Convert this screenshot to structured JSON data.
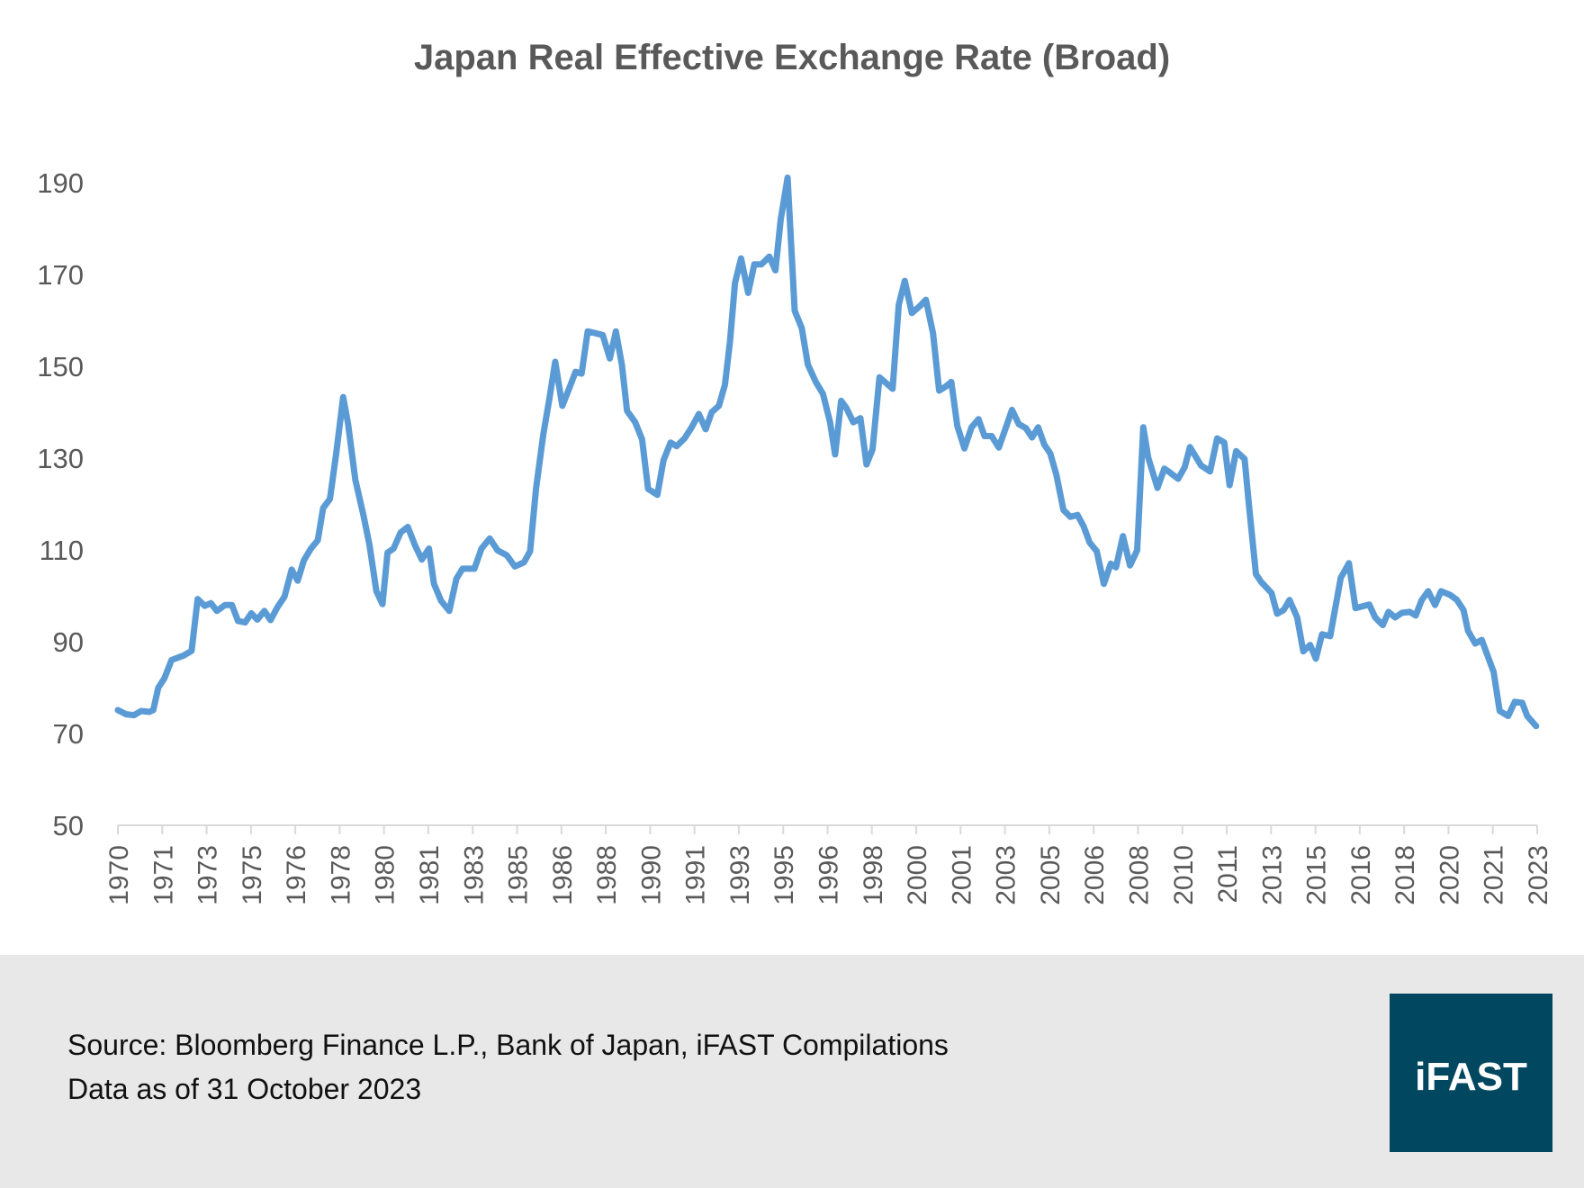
{
  "chart_data": {
    "type": "line",
    "title": "Japan Real Effective Exchange Rate (Broad)",
    "xlabel": "",
    "ylabel": "",
    "ylim": [
      50,
      190
    ],
    "yticks": [
      50,
      70,
      90,
      110,
      130,
      150,
      170,
      190
    ],
    "xlim": [
      1970.0,
      2023.75
    ],
    "xtick_labels": [
      "1970",
      "1971",
      "1973",
      "1975",
      "1976",
      "1978",
      "1980",
      "1981",
      "1983",
      "1985",
      "1986",
      "1988",
      "1990",
      "1991",
      "1993",
      "1995",
      "1996",
      "1998",
      "2000",
      "2001",
      "2003",
      "2005",
      "2006",
      "2008",
      "2010",
      "2011",
      "2013",
      "2015",
      "2016",
      "2018",
      "2020",
      "2021",
      "2023"
    ],
    "grid": false,
    "legend": "none",
    "series": [
      {
        "color": "#5b9bd5",
        "x": [
          1970.0,
          1970.31,
          1970.61,
          1970.88,
          1971.19,
          1971.34,
          1971.53,
          1971.76,
          1972.03,
          1972.49,
          1972.79,
          1973.02,
          1973.29,
          1973.52,
          1973.75,
          1974.06,
          1974.32,
          1974.55,
          1974.82,
          1975.05,
          1975.28,
          1975.55,
          1975.78,
          1976.04,
          1976.31,
          1976.58,
          1976.81,
          1977.04,
          1977.31,
          1977.57,
          1977.77,
          1978.03,
          1978.26,
          1978.53,
          1978.72,
          1978.99,
          1979.3,
          1979.53,
          1979.79,
          1980.02,
          1980.21,
          1980.44,
          1980.71,
          1980.98,
          1981.25,
          1981.51,
          1981.78,
          1981.97,
          1982.24,
          1982.55,
          1982.82,
          1983.05,
          1983.5,
          1983.77,
          1984.08,
          1984.38,
          1984.73,
          1985.03,
          1985.38,
          1985.61,
          1985.84,
          1986.11,
          1986.34,
          1986.56,
          1986.83,
          1987.1,
          1987.33,
          1987.56,
          1987.79,
          1988.1,
          1988.36,
          1988.63,
          1988.86,
          1989.09,
          1989.28,
          1989.59,
          1989.85,
          1990.08,
          1990.43,
          1990.66,
          1990.93,
          1991.16,
          1991.46,
          1991.73,
          1992.0,
          1992.26,
          1992.49,
          1992.76,
          1992.99,
          1993.18,
          1993.37,
          1993.6,
          1993.87,
          1994.1,
          1994.37,
          1994.67,
          1994.9,
          1995.1,
          1995.36,
          1995.63,
          1995.9,
          1996.13,
          1996.43,
          1996.7,
          1996.97,
          1997.16,
          1997.39,
          1997.58,
          1997.85,
          1998.12,
          1998.35,
          1998.58,
          1998.84,
          1999.04,
          1999.34,
          1999.57,
          1999.8,
          2000.07,
          2000.37,
          2000.6,
          2000.87,
          2001.1,
          2001.33,
          2001.56,
          2001.79,
          2002.06,
          2002.33,
          2002.59,
          2002.82,
          2003.09,
          2003.36,
          2003.63,
          2003.86,
          2004.12,
          2004.39,
          2004.62,
          2004.85,
          2005.08,
          2005.31,
          2005.54,
          2005.81,
          2006.07,
          2006.34,
          2006.57,
          2006.8,
          2007.07,
          2007.34,
          2007.6,
          2007.8,
          2008.06,
          2008.33,
          2008.6,
          2008.83,
          2009.02,
          2009.37,
          2009.63,
          2009.83,
          2010.15,
          2010.4,
          2010.6,
          2011.02,
          2011.36,
          2011.63,
          2011.9,
          2012.1,
          2012.35,
          2012.67,
          2012.84,
          2013.1,
          2013.3,
          2013.69,
          2013.9,
          2014.15,
          2014.37,
          2014.66,
          2014.89,
          2015.15,
          2015.37,
          2015.6,
          2015.91,
          2016.31,
          2016.62,
          2016.87,
          2017.39,
          2017.61,
          2017.9,
          2018.12,
          2018.37,
          2018.63,
          2018.92,
          2019.15,
          2019.37,
          2019.62,
          2019.88,
          2020.11,
          2020.45,
          2020.71,
          2020.96,
          2021.13,
          2021.4,
          2021.65,
          2022.1,
          2022.33,
          2022.65,
          2022.9,
          2023.18,
          2023.37,
          2023.71
        ],
        "y": [
          75.1,
          74.2,
          74.0,
          74.9,
          74.7,
          75.1,
          80.0,
          82.0,
          86.0,
          87.0,
          88.0,
          99.3,
          97.8,
          98.4,
          96.7,
          98.0,
          98.0,
          94.5,
          94.2,
          96.2,
          94.8,
          96.7,
          94.7,
          97.5,
          99.8,
          105.7,
          103.3,
          107.7,
          110.3,
          112.1,
          119.1,
          121.1,
          130.6,
          143.3,
          137.4,
          125.3,
          117.5,
          111.0,
          101.0,
          98.2,
          109.4,
          110.3,
          113.8,
          115.0,
          111.0,
          107.9,
          110.3,
          102.6,
          98.9,
          96.7,
          103.7,
          105.9,
          105.9,
          110.3,
          112.5,
          109.9,
          108.8,
          106.4,
          107.3,
          109.7,
          123.5,
          135.2,
          142.9,
          151.0,
          141.4,
          145.3,
          148.8,
          148.4,
          157.6,
          157.2,
          156.8,
          151.7,
          157.6,
          150.2,
          140.3,
          137.8,
          134.1,
          123.3,
          122.0,
          129.5,
          133.4,
          132.6,
          134.3,
          136.7,
          139.6,
          136.3,
          140.0,
          141.4,
          146.0,
          155.4,
          168.2,
          173.5,
          166.0,
          172.2,
          172.2,
          173.9,
          170.9,
          181.9,
          191.1,
          162.1,
          158.3,
          150.4,
          146.6,
          144.0,
          137.8,
          130.8,
          142.5,
          141.0,
          137.8,
          138.7,
          128.6,
          131.9,
          147.6,
          146.6,
          145.1,
          163.4,
          168.6,
          161.6,
          163.1,
          164.5,
          157.2,
          144.7,
          145.5,
          146.6,
          137.0,
          132.1,
          136.7,
          138.5,
          134.8,
          134.8,
          132.3,
          136.7,
          140.5,
          137.4,
          136.5,
          134.5,
          136.7,
          133.0,
          131.0,
          126.4,
          118.7,
          117.2,
          117.6,
          115.2,
          111.6,
          109.7,
          102.6,
          107.0,
          106.2,
          113.0,
          106.6,
          109.9,
          136.7,
          130.1,
          123.5,
          127.7,
          126.9,
          125.5,
          128.0,
          132.4,
          128.4,
          127.1,
          134.3,
          133.4,
          124.1,
          131.5,
          129.8,
          119.4,
          104.7,
          103.0,
          100.6,
          96.1,
          96.9,
          99.1,
          95.3,
          87.9,
          89.3,
          86.3,
          91.6,
          91.2,
          103.9,
          107.1,
          97.3,
          98.1,
          95.3,
          93.6,
          96.5,
          95.3,
          96.3,
          96.5,
          95.7,
          99.0,
          101.0,
          98.0,
          101.0,
          100.2,
          99.1,
          96.9,
          92.4,
          89.6,
          90.4,
          83.4,
          74.9,
          73.8,
          76.9,
          76.7,
          73.8,
          71.6
        ]
      }
    ]
  },
  "footer": {
    "source": "Source: Bloomberg Finance L.P., Bank of Japan, iFAST Compilations",
    "data_as_of": "Data as of 31 October 2023",
    "background": "#e8e8e8"
  },
  "logo": {
    "text": "iFAST",
    "color": "#024760"
  }
}
